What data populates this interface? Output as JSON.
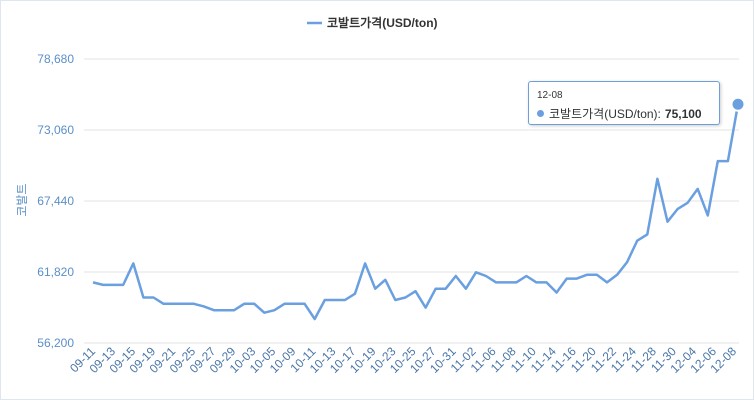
{
  "chart_data": {
    "type": "line",
    "title": "",
    "legend": {
      "label": "코발트가격(USD/ton)",
      "position": "top-center"
    },
    "ylabel": "코발트",
    "xlabel": "",
    "ylim": [
      56200,
      78680
    ],
    "yticks": [
      56200,
      61820,
      67440,
      73060,
      78680
    ],
    "grid": "horizontal",
    "color": "#6a9fe0",
    "x_tick_labels": [
      "09-11",
      "09-13",
      "09-15",
      "09-19",
      "09-21",
      "09-25",
      "09-27",
      "09-29",
      "10-03",
      "10-05",
      "10-09",
      "10-11",
      "10-13",
      "10-17",
      "10-19",
      "10-23",
      "10-25",
      "10-27",
      "10-31",
      "11-02",
      "11-06",
      "11-08",
      "11-10",
      "11-14",
      "11-16",
      "11-20",
      "11-22",
      "11-24",
      "11-28",
      "11-30",
      "12-04",
      "12-06",
      "12-08"
    ],
    "series": [
      {
        "name": "코발트가격(USD/ton)",
        "values": [
          61000,
          60800,
          60800,
          60800,
          62500,
          59800,
          59800,
          59300,
          59300,
          59300,
          59300,
          59100,
          58800,
          58800,
          58800,
          59300,
          59300,
          58600,
          58800,
          59300,
          59300,
          59300,
          58100,
          59600,
          59600,
          59600,
          60100,
          62500,
          60500,
          61200,
          59600,
          59800,
          60300,
          59000,
          60500,
          60500,
          61500,
          60500,
          61800,
          61500,
          61000,
          61000,
          61000,
          61500,
          61000,
          61000,
          60200,
          61300,
          61300,
          61600,
          61600,
          61000,
          61600,
          62600,
          64300,
          64800,
          69200,
          65800,
          66800,
          67300,
          68400,
          66300,
          70600,
          70600,
          75100
        ]
      }
    ]
  },
  "tooltip": {
    "x": "12-08",
    "series_name": "코발트가격(USD/ton):",
    "value": "75,100"
  }
}
